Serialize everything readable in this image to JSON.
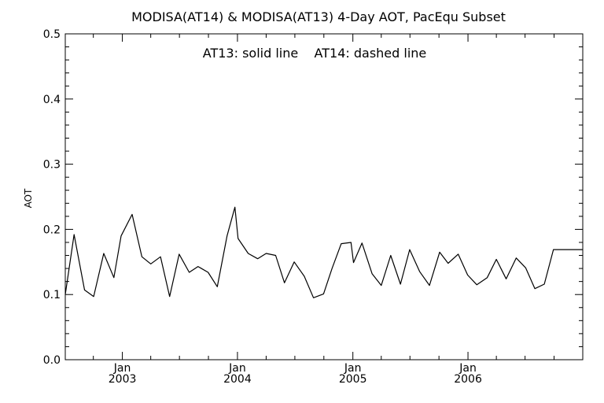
{
  "chart_data": {
    "type": "line",
    "title": "MODISA(AT14) & MODISA(AT13) 4-Day AOT, PacEqu Subset",
    "annotation": "AT13: solid line    AT14: dashed line",
    "xlabel": "",
    "ylabel": "AOT",
    "ylim": [
      0.0,
      0.5
    ],
    "yticks": [
      0.0,
      0.1,
      0.2,
      0.3,
      0.4,
      0.5
    ],
    "ytick_labels": [
      "0.0",
      "0.1",
      "0.2",
      "0.3",
      "0.4",
      "0.5"
    ],
    "xlim": [
      "2002-07-04",
      "2006-12-31"
    ],
    "xticks": [
      {
        "date": "2003-01-01",
        "month": "Jan",
        "year": "2003"
      },
      {
        "date": "2004-01-01",
        "month": "Jan",
        "year": "2004"
      },
      {
        "date": "2005-01-01",
        "month": "Jan",
        "year": "2005"
      },
      {
        "date": "2006-01-01",
        "month": "Jan",
        "year": "2006"
      }
    ],
    "grid": false,
    "series": [
      {
        "style": "solid",
        "x": [
          "2002-07-04",
          "2002-08-01",
          "2002-09-03",
          "2002-10-02",
          "2002-11-03",
          "2002-12-05",
          "2002-12-28",
          "2003-02-01",
          "2003-03-04",
          "2003-04-01",
          "2003-05-02",
          "2003-05-31",
          "2003-06-30",
          "2003-08-01",
          "2003-08-29",
          "2003-09-30",
          "2003-10-29",
          "2003-11-29",
          "2003-12-24",
          "2004-01-03",
          "2004-02-04",
          "2004-03-05",
          "2004-04-01",
          "2004-05-01",
          "2004-05-29",
          "2004-06-29",
          "2004-07-31",
          "2004-08-29",
          "2004-09-30",
          "2004-10-27",
          "2004-11-25",
          "2004-12-26",
          "2005-01-03",
          "2005-01-30",
          "2005-03-03",
          "2005-04-01",
          "2005-05-01",
          "2005-06-01",
          "2005-06-30",
          "2005-08-01",
          "2005-09-01",
          "2005-10-03",
          "2005-10-30",
          "2005-12-01",
          "2005-12-31",
          "2006-01-29",
          "2006-03-03",
          "2006-04-01",
          "2006-05-02",
          "2006-06-03",
          "2006-07-03",
          "2006-08-01",
          "2006-08-31",
          "2006-09-29",
          "2006-10-31",
          "2006-12-02",
          "2006-12-31"
        ],
        "y": [
          0.1,
          0.192,
          0.107,
          0.097,
          0.163,
          0.126,
          0.19,
          0.223,
          0.158,
          0.147,
          0.158,
          0.097,
          0.162,
          0.134,
          0.143,
          0.134,
          0.112,
          0.19,
          0.234,
          0.186,
          0.163,
          0.155,
          0.163,
          0.16,
          0.118,
          0.15,
          0.128,
          0.095,
          0.101,
          0.14,
          0.178,
          0.18,
          0.149,
          0.179,
          0.132,
          0.114,
          0.16,
          0.116,
          0.169,
          0.135,
          0.114,
          0.165,
          0.148,
          0.162,
          0.13,
          0.115,
          0.126,
          0.154,
          0.124,
          0.156,
          0.141,
          0.109,
          0.116,
          0.169,
          0.169,
          0.169,
          0.169
        ]
      }
    ]
  }
}
